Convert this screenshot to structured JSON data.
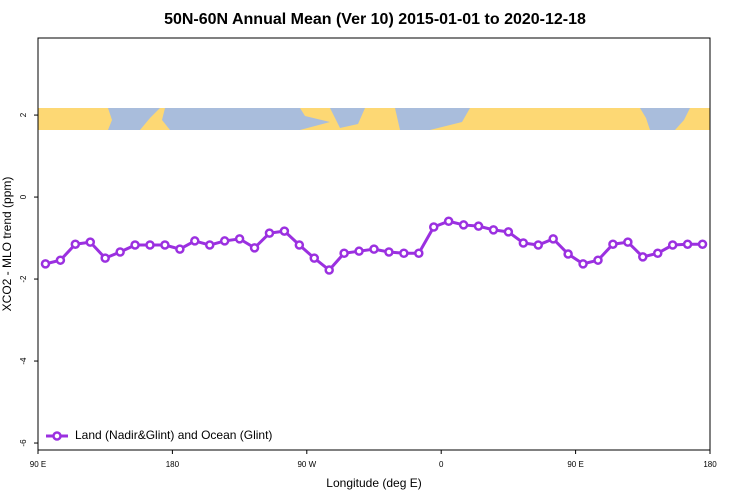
{
  "chart_data": {
    "type": "line",
    "title": "50N-60N Annual Mean (Ver 10)   2015-01-01 to 2020-12-18",
    "x_label": "Longitude (deg E)",
    "y_label": "XCO2 - MLO trend (ppm)",
    "xlim": [
      90,
      540
    ],
    "xticks": [
      {
        "value": 90,
        "label": "90 E"
      },
      {
        "value": 180,
        "label": "180"
      },
      {
        "value": 270,
        "label": "90 W"
      },
      {
        "value": 360,
        "label": "0"
      },
      {
        "value": 450,
        "label": "90 E"
      },
      {
        "value": 540,
        "label": "180"
      }
    ],
    "ylim": [
      -6.17,
      3.88
    ],
    "yticks": [
      -6,
      -4,
      -2,
      0,
      2
    ],
    "legend_position": "bottom-left",
    "x": [
      95,
      105,
      115,
      125,
      135,
      145,
      155,
      165,
      175,
      185,
      195,
      205,
      215,
      225,
      235,
      245,
      255,
      265,
      275,
      285,
      295,
      305,
      315,
      325,
      335,
      345,
      355,
      365,
      375,
      385,
      395,
      405,
      415,
      425,
      435,
      445,
      455,
      465,
      475,
      485,
      495,
      505,
      515,
      525,
      535
    ],
    "series": [
      {
        "name": "Land (Nadir&Glint) and Ocean (Glint)",
        "color": "#9b30e0",
        "values": [
          -1.63,
          -1.54,
          -1.15,
          -1.1,
          -1.49,
          -1.34,
          -1.17,
          -1.17,
          -1.17,
          -1.27,
          -1.07,
          -1.17,
          -1.07,
          -1.02,
          -1.24,
          -0.88,
          -0.83,
          -1.17,
          -1.49,
          -1.78,
          -1.37,
          -1.32,
          -1.27,
          -1.34,
          -1.37,
          -1.37,
          -0.73,
          -0.59,
          -0.68,
          -0.71,
          -0.8,
          -0.85,
          -1.12,
          -1.17,
          -1.02,
          -1.39,
          -1.63,
          -1.54,
          -1.15,
          -1.1,
          -1.46,
          -1.37,
          -1.17,
          -1.15,
          -1.15
        ]
      }
    ]
  }
}
